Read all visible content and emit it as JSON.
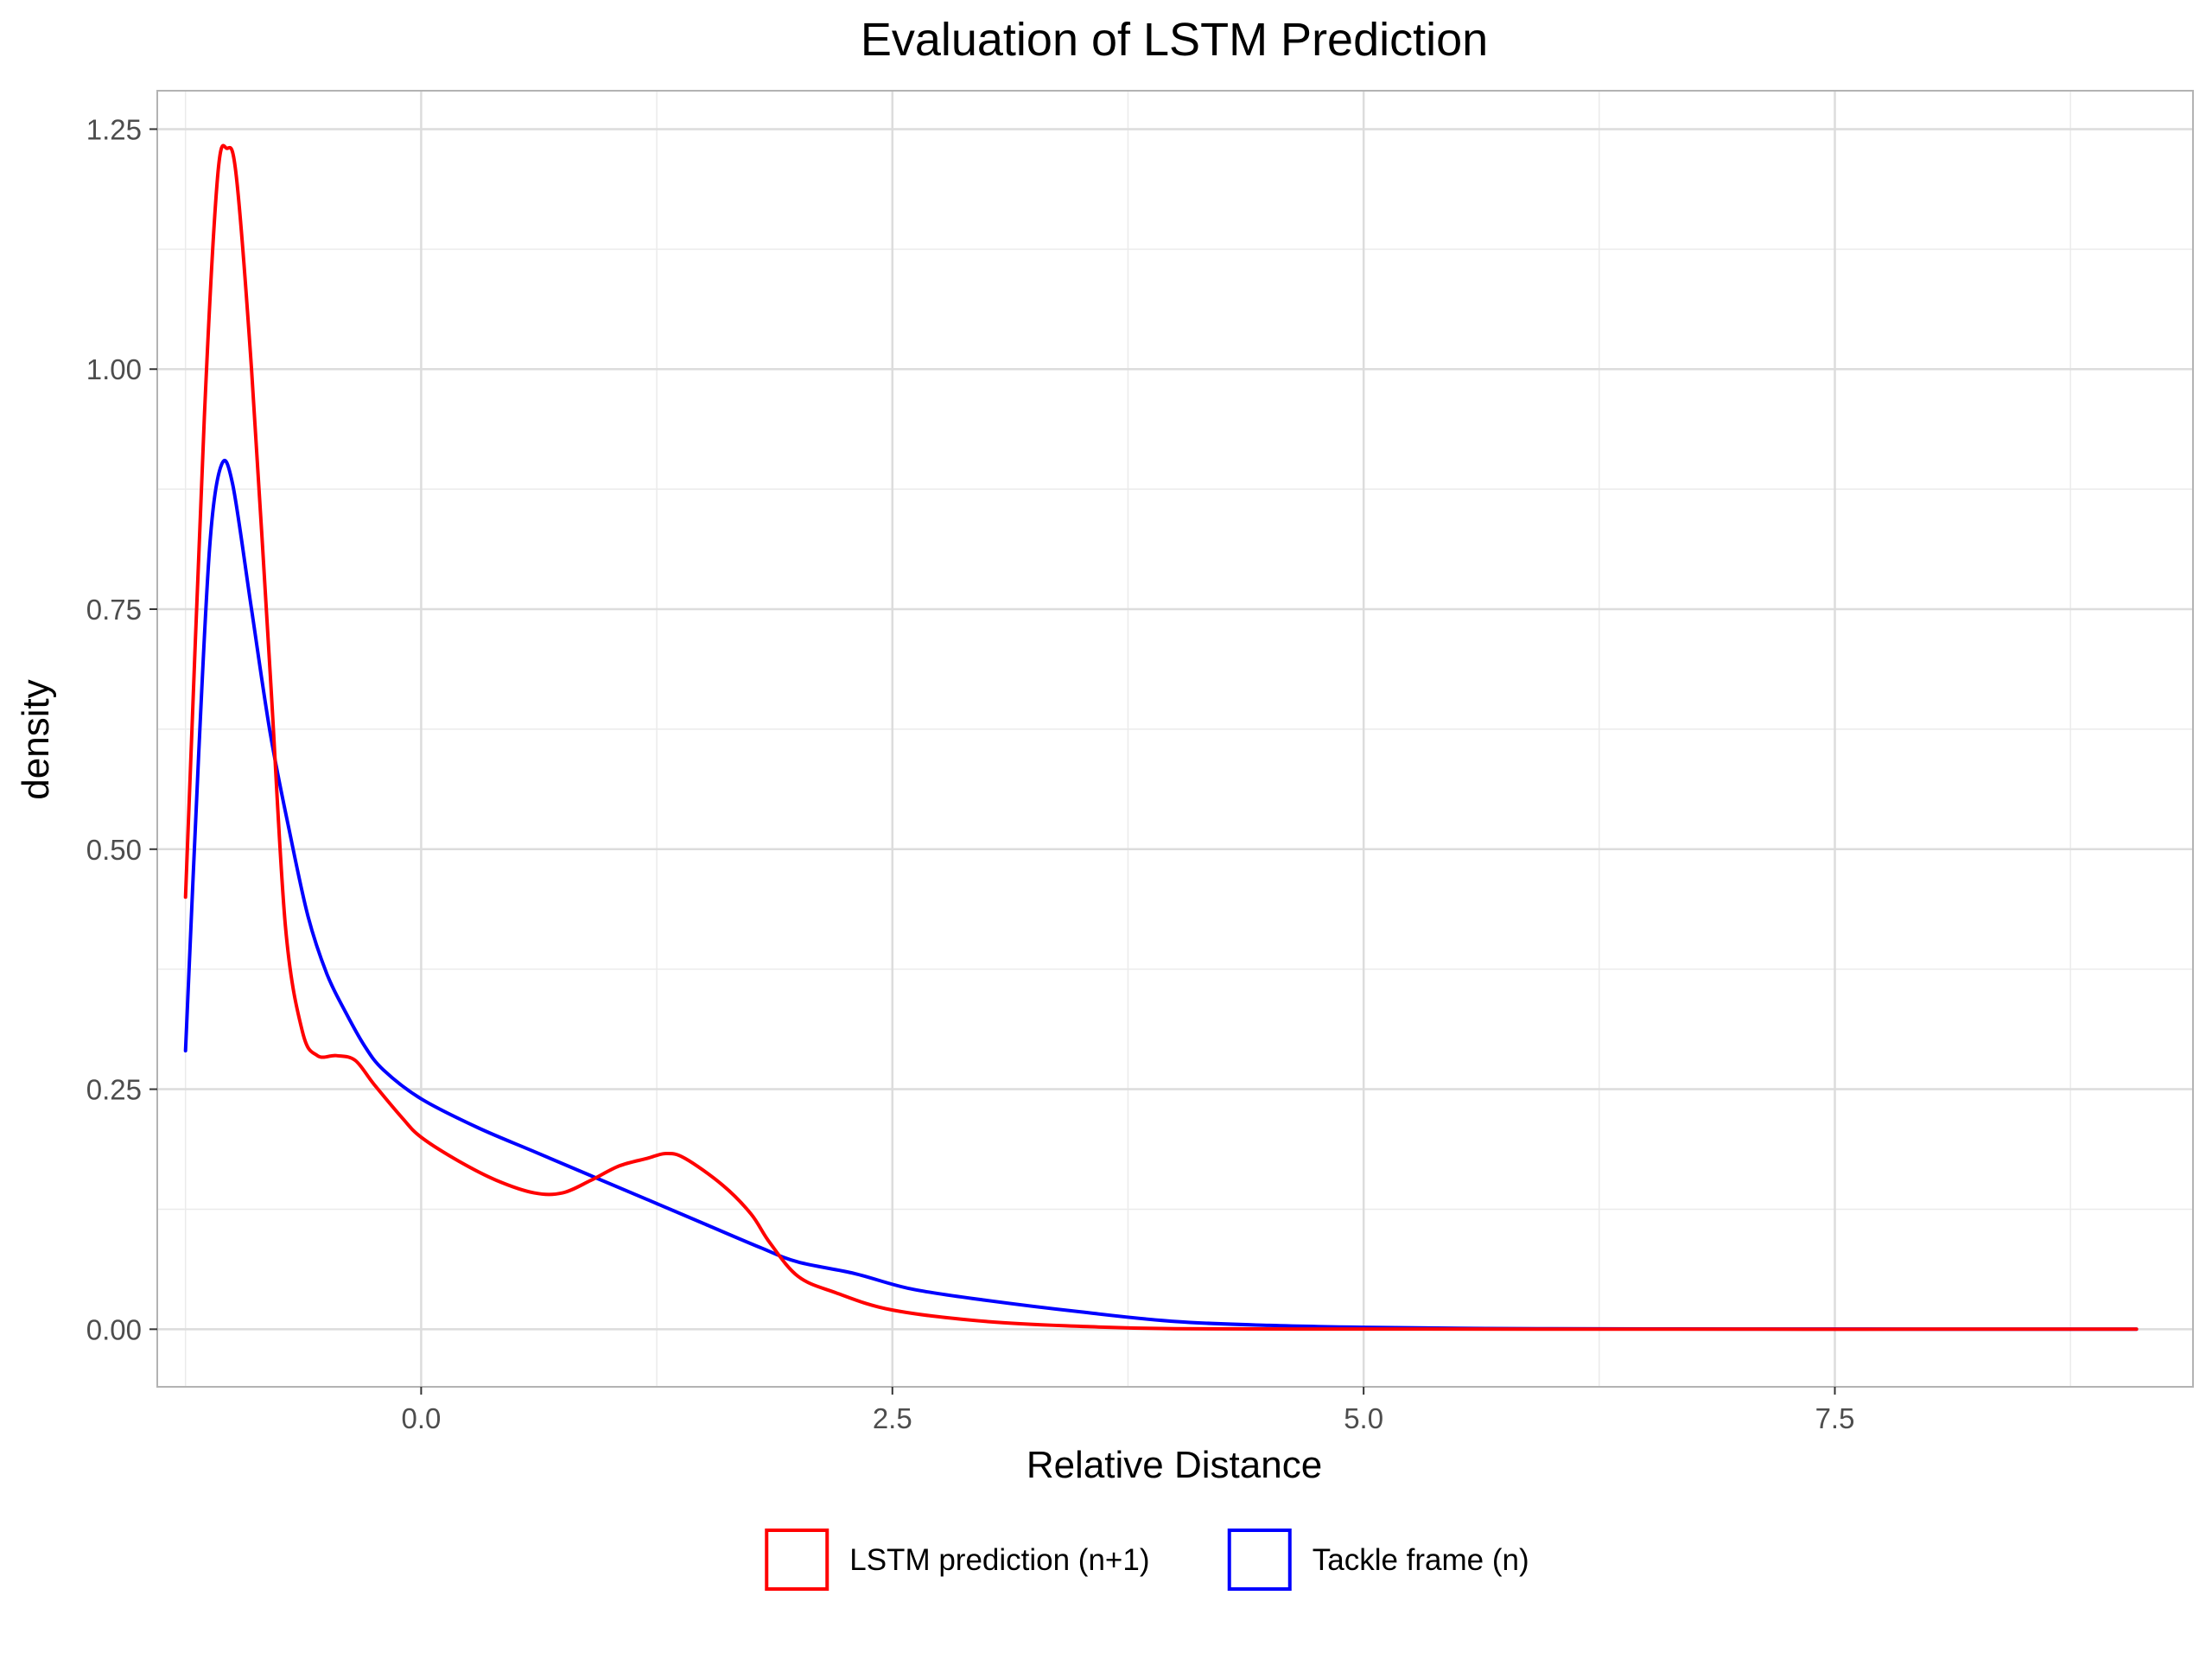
{
  "chart_data": {
    "type": "line",
    "title": "Evaluation of LSTM Prediction",
    "xlabel": "Relative Distance",
    "ylabel": "density",
    "xlim": [
      -1.4,
      9.4
    ],
    "ylim": [
      -0.06,
      1.29
    ],
    "x_ticks": [
      0.0,
      2.5,
      5.0,
      7.5
    ],
    "x_tick_labels": [
      "0.0",
      "2.5",
      "5.0",
      "7.5"
    ],
    "y_ticks": [
      0.0,
      0.25,
      0.5,
      0.75,
      1.0,
      1.25
    ],
    "y_tick_labels": [
      "0.00",
      "0.25",
      "0.50",
      "0.75",
      "1.00",
      "1.25"
    ],
    "grid": true,
    "legend_position": "bottom",
    "series": [
      {
        "name": "LSTM prediction (n+1)",
        "color": "#ff0000",
        "points": [
          [
            -1.25,
            0.45
          ],
          [
            -1.15,
            0.95
          ],
          [
            -1.08,
            1.2
          ],
          [
            -1.03,
            1.23
          ],
          [
            -0.98,
            1.2
          ],
          [
            -0.9,
            1.0
          ],
          [
            -0.8,
            0.68
          ],
          [
            -0.72,
            0.42
          ],
          [
            -0.63,
            0.31
          ],
          [
            -0.55,
            0.285
          ],
          [
            -0.45,
            0.285
          ],
          [
            -0.35,
            0.28
          ],
          [
            -0.25,
            0.255
          ],
          [
            -0.1,
            0.22
          ],
          [
            0.0,
            0.2
          ],
          [
            0.2,
            0.175
          ],
          [
            0.4,
            0.155
          ],
          [
            0.6,
            0.142
          ],
          [
            0.75,
            0.142
          ],
          [
            0.9,
            0.155
          ],
          [
            1.05,
            0.17
          ],
          [
            1.2,
            0.178
          ],
          [
            1.3,
            0.183
          ],
          [
            1.4,
            0.178
          ],
          [
            1.6,
            0.15
          ],
          [
            1.75,
            0.12
          ],
          [
            1.85,
            0.09
          ],
          [
            2.0,
            0.055
          ],
          [
            2.2,
            0.038
          ],
          [
            2.5,
            0.02
          ],
          [
            3.0,
            0.008
          ],
          [
            3.5,
            0.003
          ],
          [
            4.0,
            0.0005
          ],
          [
            5.0,
            0.0002
          ],
          [
            6.0,
            0.0001
          ],
          [
            7.0,
            0.0
          ],
          [
            8.0,
            0.0
          ],
          [
            9.1,
            0.0
          ]
        ]
      },
      {
        "name": "Tackle frame (n)",
        "color": "#0000ff",
        "points": [
          [
            -1.25,
            0.29
          ],
          [
            -1.18,
            0.6
          ],
          [
            -1.12,
            0.82
          ],
          [
            -1.06,
            0.9
          ],
          [
            -1.0,
            0.88
          ],
          [
            -0.9,
            0.75
          ],
          [
            -0.8,
            0.62
          ],
          [
            -0.7,
            0.52
          ],
          [
            -0.6,
            0.43
          ],
          [
            -0.5,
            0.37
          ],
          [
            -0.4,
            0.33
          ],
          [
            -0.3,
            0.295
          ],
          [
            -0.2,
            0.27
          ],
          [
            0.0,
            0.24
          ],
          [
            0.3,
            0.21
          ],
          [
            0.6,
            0.185
          ],
          [
            0.9,
            0.16
          ],
          [
            1.2,
            0.135
          ],
          [
            1.5,
            0.11
          ],
          [
            1.8,
            0.085
          ],
          [
            2.0,
            0.07
          ],
          [
            2.3,
            0.058
          ],
          [
            2.6,
            0.042
          ],
          [
            3.0,
            0.03
          ],
          [
            3.5,
            0.018
          ],
          [
            4.0,
            0.008
          ],
          [
            4.5,
            0.004
          ],
          [
            5.0,
            0.002
          ],
          [
            5.5,
            0.001
          ],
          [
            6.0,
            0.0005
          ],
          [
            7.0,
            0.0002
          ],
          [
            8.0,
            0.0001
          ],
          [
            9.1,
            0.0
          ]
        ]
      }
    ]
  }
}
